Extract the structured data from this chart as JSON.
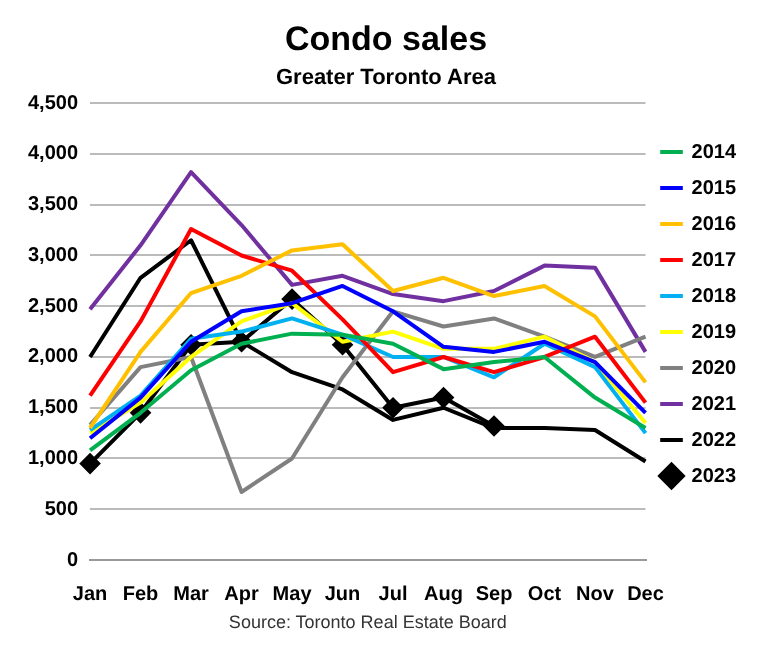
{
  "chart_data": {
    "type": "line",
    "title": "Condo sales",
    "subtitle": "Greater Toronto Area",
    "annotations": [
      "Source: Toronto Real Estate Board"
    ],
    "categories": [
      "Jan",
      "Feb",
      "Mar",
      "Apr",
      "May",
      "Jun",
      "Jul",
      "Aug",
      "Sep",
      "Oct",
      "Nov",
      "Dec"
    ],
    "ylim": [
      0,
      4500
    ],
    "yticks": [
      0,
      500,
      {
        "value": 1000,
        "label": "1,000"
      },
      {
        "value": 1500,
        "label": "1,500"
      },
      {
        "value": 2000,
        "label": "2,000"
      },
      {
        "value": 2500,
        "label": "2,500"
      },
      {
        "value": 3000,
        "label": "3,000"
      },
      {
        "value": 3500,
        "label": "3,500"
      },
      {
        "value": 4000,
        "label": "4,000"
      },
      {
        "value": 4500,
        "label": "4,500"
      }
    ],
    "grid": "y",
    "legend": "right",
    "marker": "none",
    "line_style": "solid",
    "series": [
      {
        "name": "2014",
        "color": "#00b050",
        "values": [
          1080,
          1450,
          1870,
          2130,
          2230,
          2220,
          2130,
          1880,
          1950,
          2000,
          1600,
          1300
        ]
      },
      {
        "name": "2015",
        "color": "#0000ff",
        "values": [
          1200,
          1600,
          2150,
          2450,
          2530,
          2700,
          2450,
          2100,
          2050,
          2150,
          1950,
          1450
        ]
      },
      {
        "name": "2016",
        "color": "#ffc000",
        "values": [
          1300,
          2050,
          2630,
          2800,
          3050,
          3110,
          2650,
          2780,
          2600,
          2700,
          2400,
          1750
        ]
      },
      {
        "name": "2017",
        "color": "#ff0000",
        "values": [
          1620,
          2350,
          3260,
          3000,
          2850,
          2370,
          1850,
          2000,
          1850,
          2000,
          2200,
          1550
        ]
      },
      {
        "name": "2018",
        "color": "#00b0f0",
        "values": [
          1280,
          1620,
          2180,
          2250,
          2380,
          2220,
          2000,
          2000,
          1800,
          2130,
          1900,
          1250
        ]
      },
      {
        "name": "2019",
        "color": "#ffff00",
        "values": [
          1250,
          1550,
          2000,
          2350,
          2530,
          2150,
          2250,
          2080,
          2080,
          2200,
          1950,
          1350
        ]
      },
      {
        "name": "2020",
        "color": "#808080",
        "values": [
          1330,
          1900,
          2000,
          670,
          1000,
          1800,
          2450,
          2300,
          2380,
          2200,
          2000,
          2200
        ]
      },
      {
        "name": "2021",
        "color": "#7030a0",
        "values": [
          2470,
          3100,
          3820,
          3300,
          2710,
          2800,
          2620,
          2550,
          2650,
          2900,
          2880,
          2050
        ]
      },
      {
        "name": "2022",
        "color": "#000000",
        "values": [
          2000,
          2780,
          3150,
          2150,
          1850,
          1680,
          1380,
          1500,
          1300,
          1300,
          1280,
          970
        ]
      },
      {
        "name": "2023",
        "color": "#000000",
        "marker": "diamond",
        "values": [
          950,
          1450,
          2120,
          2150,
          2570,
          2120,
          1500,
          1600,
          1320,
          null,
          null,
          null
        ]
      }
    ]
  }
}
